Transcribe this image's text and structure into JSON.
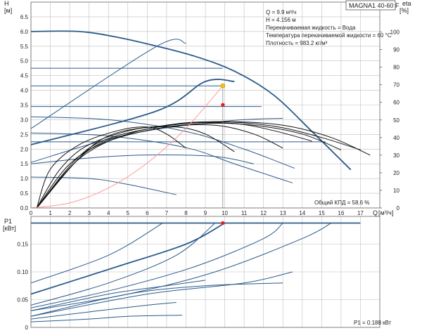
{
  "model_badge": "MAGNA1 40-60 F",
  "info_lines": [
    "Q = 9.9 м³/ч",
    "H = 4.156 м",
    "Перекачиваемая жидкость = Вода",
    "Температура перекачиваемой жидкости = 60 °C",
    "Плотность = 983.2 кг/м³"
  ],
  "colors": {
    "pump_curve": "#2b5a8a",
    "system_curve": "#ff9a9a",
    "efficiency_curve": "#111111",
    "duty_point_head": "#f5c518",
    "duty_point_eff": "#e02020",
    "grid": "#bfbfbf"
  },
  "chart_data": [
    {
      "type": "line",
      "name": "head_chart",
      "ylabel": "H",
      "yunit": "[м]",
      "y2label": "eta",
      "y2unit": "[%]",
      "xlabel": "Q",
      "xunit": "[м³/ч]",
      "xlim": [
        0,
        18
      ],
      "ylim": [
        0,
        7
      ],
      "y2lim": [
        0,
        117
      ],
      "x_ticks": [
        "0",
        "1",
        "2",
        "3",
        "4",
        "5",
        "6",
        "7",
        "8",
        "9",
        "10",
        "11",
        "12",
        "13",
        "14",
        "15",
        "16",
        "17"
      ],
      "y_ticks": [
        "0.0",
        "0.5",
        "1.0",
        "1.5",
        "2.0",
        "2.5",
        "3.0",
        "3.5",
        "4.0",
        "4.5",
        "5.0",
        "5.5",
        "6.0",
        "6.5"
      ],
      "y2_ticks": [
        "0",
        "10",
        "20",
        "30",
        "40",
        "50",
        "60",
        "70",
        "80",
        "90",
        "100"
      ],
      "efficiency_label": "Общий КПД = 58.6 %",
      "duty_point": {
        "q": 9.9,
        "h": 4.156,
        "eta": 58.6
      },
      "pump_curves": [
        {
          "points": [
            [
              0,
              6.0
            ],
            [
              2.5,
              6.0
            ],
            [
              4.5,
              5.8
            ],
            [
              6.5,
              5.5
            ],
            [
              8.5,
              5.15
            ],
            [
              10.5,
              4.65
            ],
            [
              12.5,
              3.85
            ],
            [
              14.5,
              2.6
            ],
            [
              16.5,
              1.3
            ]
          ]
        },
        {
          "points": [
            [
              0,
              4.75
            ],
            [
              9.9,
              4.75
            ]
          ]
        },
        {
          "points": [
            [
              0,
              4.15
            ],
            [
              9.9,
              4.15
            ]
          ]
        },
        {
          "points": [
            [
              0,
              3.45
            ],
            [
              11.9,
              3.45
            ]
          ]
        },
        {
          "points": [
            [
              0,
              2.25
            ],
            [
              15.2,
              2.25
            ]
          ]
        },
        {
          "points": [
            [
              0,
              2.15
            ],
            [
              6.5,
              3.3
            ],
            [
              9.0,
              4.3
            ],
            [
              10.5,
              4.3
            ]
          ]
        },
        {
          "points": [
            [
              0,
              2.7
            ],
            [
              6.5,
              5.5
            ],
            [
              8.0,
              5.6
            ]
          ]
        },
        {
          "points": [
            [
              0,
              3.1
            ],
            [
              4.0,
              3.0
            ],
            [
              8.0,
              2.6
            ],
            [
              11.0,
              2.0
            ],
            [
              13.6,
              1.35
            ]
          ]
        },
        {
          "points": [
            [
              0,
              2.55
            ],
            [
              4.0,
              2.45
            ],
            [
              8.0,
              2.05
            ],
            [
              10.5,
              1.5
            ],
            [
              13.5,
              0.85
            ]
          ]
        },
        {
          "points": [
            [
              0,
              1.5
            ],
            [
              3.0,
              1.7
            ],
            [
              6.0,
              1.8
            ],
            [
              9.5,
              1.75
            ],
            [
              11.5,
              1.5
            ]
          ]
        },
        {
          "points": [
            [
              0,
              1.05
            ],
            [
              3.0,
              1.0
            ],
            [
              5.0,
              0.8
            ],
            [
              7.5,
              0.45
            ]
          ]
        },
        {
          "points": [
            [
              0,
              1.55
            ],
            [
              5.0,
              2.5
            ],
            [
              10.0,
              2.95
            ],
            [
              13.0,
              3.05
            ]
          ]
        }
      ],
      "efficiency_curves": [
        {
          "points": [
            [
              0.3,
              0
            ],
            [
              1.0,
              22
            ],
            [
              2.5,
              36
            ],
            [
              4.5,
              44
            ],
            [
              6.0,
              46
            ],
            [
              7.0,
              42
            ],
            [
              8.0,
              34
            ]
          ]
        },
        {
          "points": [
            [
              0.3,
              0
            ],
            [
              1.5,
              22
            ],
            [
              3.0,
              36
            ],
            [
              5.5,
              45
            ],
            [
              7.5,
              46
            ],
            [
              9.0,
              42
            ],
            [
              10.5,
              32
            ]
          ]
        },
        {
          "points": [
            [
              0.3,
              0
            ],
            [
              2.0,
              25
            ],
            [
              4.0,
              38
            ],
            [
              7.0,
              46
            ],
            [
              9.5,
              47
            ],
            [
              11.5,
              42
            ],
            [
              13.0,
              34
            ]
          ]
        },
        {
          "points": [
            [
              0.3,
              0
            ],
            [
              2.5,
              28
            ],
            [
              5.0,
              42
            ],
            [
              8.0,
              48
            ],
            [
              10.5,
              48
            ],
            [
              12.5,
              44
            ],
            [
              14.5,
              38
            ]
          ]
        },
        {
          "points": [
            [
              0.3,
              0
            ],
            [
              3.0,
              33
            ],
            [
              6.0,
              44
            ],
            [
              9.0,
              48
            ],
            [
              11.5,
              47
            ],
            [
              14.0,
              42
            ],
            [
              16.0,
              33
            ]
          ]
        },
        {
          "points": [
            [
              0.3,
              0
            ],
            [
              3.0,
              34
            ],
            [
              6.5,
              46
            ],
            [
              9.5,
              49
            ],
            [
              12.5,
              46.5
            ],
            [
              15.0,
              40
            ],
            [
              17.0,
              33
            ]
          ]
        },
        {
          "points": [
            [
              0.3,
              0
            ],
            [
              3.5,
              38
            ],
            [
              7.0,
              47
            ],
            [
              10.0,
              49
            ],
            [
              13.0,
              47
            ],
            [
              15.5,
              40
            ],
            [
              17.5,
              30
            ]
          ]
        }
      ],
      "system_curve": {
        "points": [
          [
            0,
            0
          ],
          [
            2.0,
            0.17
          ],
          [
            4.0,
            0.68
          ],
          [
            6.0,
            1.53
          ],
          [
            8.0,
            2.71
          ],
          [
            9.9,
            4.156
          ]
        ]
      }
    },
    {
      "type": "line",
      "name": "power_chart",
      "ylabel": "P1",
      "yunit": "[кВт]",
      "xlim": [
        0,
        18
      ],
      "ylim": [
        0,
        0.2
      ],
      "y_ticks": [
        "0",
        "0.05",
        "0.10",
        "0.15"
      ],
      "power_label": "P1 = 0.188 кВт",
      "duty_point": {
        "q": 9.9,
        "p": 0.188
      },
      "power_curves": [
        {
          "points": [
            [
              0,
              0.188
            ],
            [
              17.0,
              0.188
            ]
          ]
        },
        {
          "points": [
            [
              0,
              0.08
            ],
            [
              4.0,
              0.13
            ],
            [
              6.8,
              0.188
            ]
          ]
        },
        {
          "points": [
            [
              0,
              0.06
            ],
            [
              4.5,
              0.11
            ],
            [
              8.0,
              0.15
            ],
            [
              10.0,
              0.188
            ]
          ]
        },
        {
          "points": [
            [
              0,
              0.04
            ],
            [
              4.0,
              0.08
            ],
            [
              7.5,
              0.13
            ],
            [
              9.5,
              0.188
            ]
          ]
        },
        {
          "points": [
            [
              0,
              0.035
            ],
            [
              4.5,
              0.07
            ],
            [
              8.5,
              0.11
            ],
            [
              12.0,
              0.16
            ],
            [
              13.0,
              0.188
            ]
          ]
        },
        {
          "points": [
            [
              0,
              0.03
            ],
            [
              5.0,
              0.06
            ],
            [
              9.5,
              0.1
            ],
            [
              14.0,
              0.16
            ],
            [
              15.5,
              0.188
            ]
          ]
        },
        {
          "points": [
            [
              0,
              0.03
            ],
            [
              4.0,
              0.06
            ],
            [
              7.0,
              0.075
            ],
            [
              9.0,
              0.085
            ]
          ]
        },
        {
          "points": [
            [
              0,
              0.02
            ],
            [
              5.0,
              0.06
            ],
            [
              9.0,
              0.075
            ],
            [
              13.0,
              0.08
            ]
          ]
        },
        {
          "points": [
            [
              0,
              0.02
            ],
            [
              6.0,
              0.06
            ],
            [
              11.0,
              0.08
            ],
            [
              13.5,
              0.1
            ]
          ]
        },
        {
          "points": [
            [
              0,
              0.015
            ],
            [
              3.5,
              0.03
            ],
            [
              6.0,
              0.04
            ],
            [
              7.5,
              0.045
            ]
          ]
        },
        {
          "points": [
            [
              0,
              0.01
            ],
            [
              3.0,
              0.015
            ],
            [
              5.0,
              0.02
            ],
            [
              7.8,
              0.022
            ]
          ]
        }
      ]
    }
  ]
}
